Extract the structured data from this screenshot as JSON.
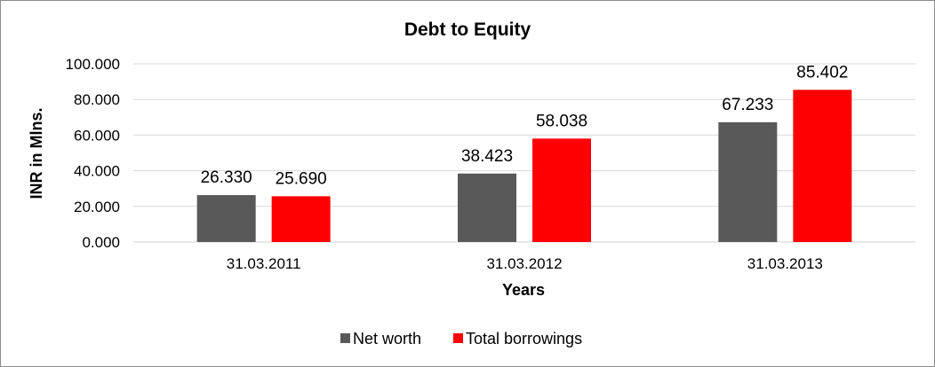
{
  "chart_data": {
    "type": "bar",
    "title": "Debt to Equity",
    "xlabel": "Years",
    "ylabel": "INR in Mlns.",
    "categories": [
      "31.03.2011",
      "31.03.2012",
      "31.03.2013"
    ],
    "ylim": [
      0,
      100
    ],
    "yticks": [
      "0.000",
      "20.000",
      "40.000",
      "60.000",
      "80.000",
      "100.000"
    ],
    "series": [
      {
        "name": "Net worth",
        "color": "#595959",
        "values": [
          26.33,
          38.423,
          67.233
        ],
        "labels": [
          "26.330",
          "38.423",
          "67.233"
        ]
      },
      {
        "name": "Total borrowings",
        "color": "#ff0000",
        "values": [
          25.69,
          58.038,
          85.402
        ],
        "labels": [
          "25.690",
          "58.038",
          "85.402"
        ]
      }
    ],
    "grid": true,
    "legend": "bottom"
  }
}
